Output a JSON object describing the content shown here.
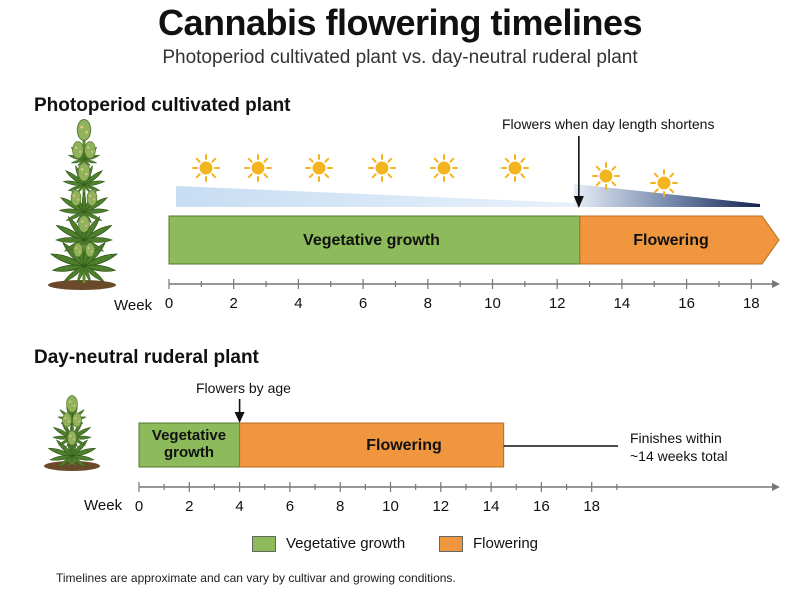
{
  "title": "Cannabis flowering timelines",
  "subtitle": "Photoperiod cultivated plant vs. day-neutral ruderal plant",
  "photoperiod": {
    "heading": "Photoperiod cultivated plant",
    "annotation": "Flowers when day length shortens",
    "vegetative_label": "Vegetative growth",
    "flowering_label": "Flowering",
    "vegetative_weeks": [
      0,
      12.7
    ],
    "flowering_weeks": [
      12.7,
      19
    ],
    "axis_label": "Week",
    "ticks": [
      "0",
      "2",
      "4",
      "6",
      "8",
      "10",
      "12",
      "14",
      "16",
      "18"
    ]
  },
  "ruderal": {
    "heading": "Day-neutral ruderal plant",
    "annotation": "Flowers by age",
    "vegetative_label_line1": "Vegetative",
    "vegetative_label_line2": "growth",
    "flowering_label": "Flowering",
    "vegetative_weeks": [
      0,
      4
    ],
    "flowering_weeks": [
      4,
      14.5
    ],
    "finish_note_line1": "Finishes within",
    "finish_note_line2": "~14 weeks total",
    "axis_label": "Week",
    "ticks": [
      "0",
      "2",
      "4",
      "6",
      "8",
      "10",
      "12",
      "14",
      "16",
      "18"
    ]
  },
  "legend": {
    "vegetative": "Vegetative growth",
    "flowering": "Flowering"
  },
  "colors": {
    "vegetative": "#8DBB5C",
    "flowering": "#F0963E",
    "sun": "#F4B41F",
    "night": "#1C2A56",
    "daylight": "#CFE3F6"
  },
  "footnote": "Timelines are approximate and can vary by cultivar and growing conditions."
}
